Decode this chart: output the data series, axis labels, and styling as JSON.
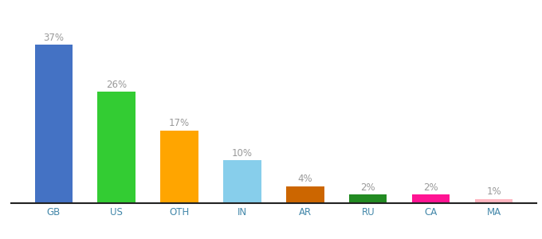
{
  "categories": [
    "GB",
    "US",
    "OTH",
    "IN",
    "AR",
    "RU",
    "CA",
    "MA"
  ],
  "values": [
    37,
    26,
    17,
    10,
    4,
    2,
    2,
    1
  ],
  "labels": [
    "37%",
    "26%",
    "17%",
    "10%",
    "4%",
    "2%",
    "2%",
    "1%"
  ],
  "bar_colors": [
    "#4472C4",
    "#33CC33",
    "#FFA500",
    "#87CEEB",
    "#CC6600",
    "#228B22",
    "#FF1493",
    "#FFB6C1"
  ],
  "ylim": [
    0,
    43
  ],
  "label_color": "#999999",
  "label_fontsize": 8.5,
  "tick_fontsize": 8.5,
  "tick_color": "#4488AA",
  "background_color": "#ffffff",
  "bar_width": 0.6,
  "bottom_spine_color": "#222222"
}
